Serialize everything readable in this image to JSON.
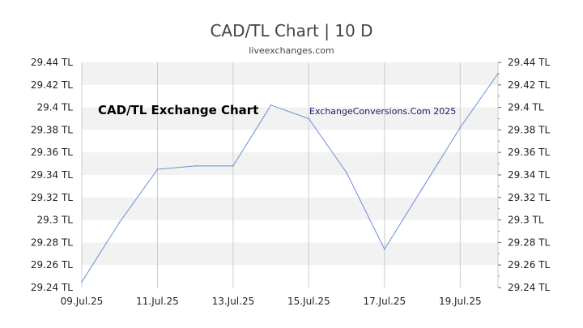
{
  "chart_data": {
    "type": "line",
    "title": "CAD/TL Chart | 10 D",
    "subtitle": "liveexchanges.com",
    "xlabel": "",
    "ylabel": "",
    "x": [
      "09.Jul.25",
      "10.Jul.25",
      "11.Jul.25",
      "12.Jul.25",
      "13.Jul.25",
      "14.Jul.25",
      "15.Jul.25",
      "16.Jul.25",
      "17.Jul.25",
      "18.Jul.25",
      "19.Jul.25",
      "20.Jul.25"
    ],
    "x_tick_labels": [
      "09.Jul.25",
      "11.Jul.25",
      "13.Jul.25",
      "15.Jul.25",
      "17.Jul.25",
      "19.Jul.25"
    ],
    "series": [
      {
        "values": [
          29.245,
          29.298,
          29.345,
          29.348,
          29.348,
          29.402,
          29.39,
          29.342,
          29.274,
          29.328,
          29.382,
          29.43
        ],
        "color": "#6a8fd8"
      }
    ],
    "ylim": [
      29.24,
      29.44
    ],
    "y_ticks": [
      29.24,
      29.26,
      29.28,
      29.3,
      29.32,
      29.34,
      29.36,
      29.38,
      29.4,
      29.42,
      29.44
    ],
    "y_tick_labels": [
      "29.24 TL",
      "29.26 TL",
      "29.28 TL",
      "29.3 TL",
      "29.32 TL",
      "29.34 TL",
      "29.36 TL",
      "29.38 TL",
      "29.4 TL",
      "29.42 TL",
      "29.44 TL"
    ],
    "grid": true,
    "annotations": [
      "CAD/TL Exchange Chart",
      "ExchangeConversions.Com 2025"
    ],
    "colors": {
      "band": "#f2f2f2",
      "grid": "#cccccc",
      "line": "#6a8fd8"
    }
  }
}
